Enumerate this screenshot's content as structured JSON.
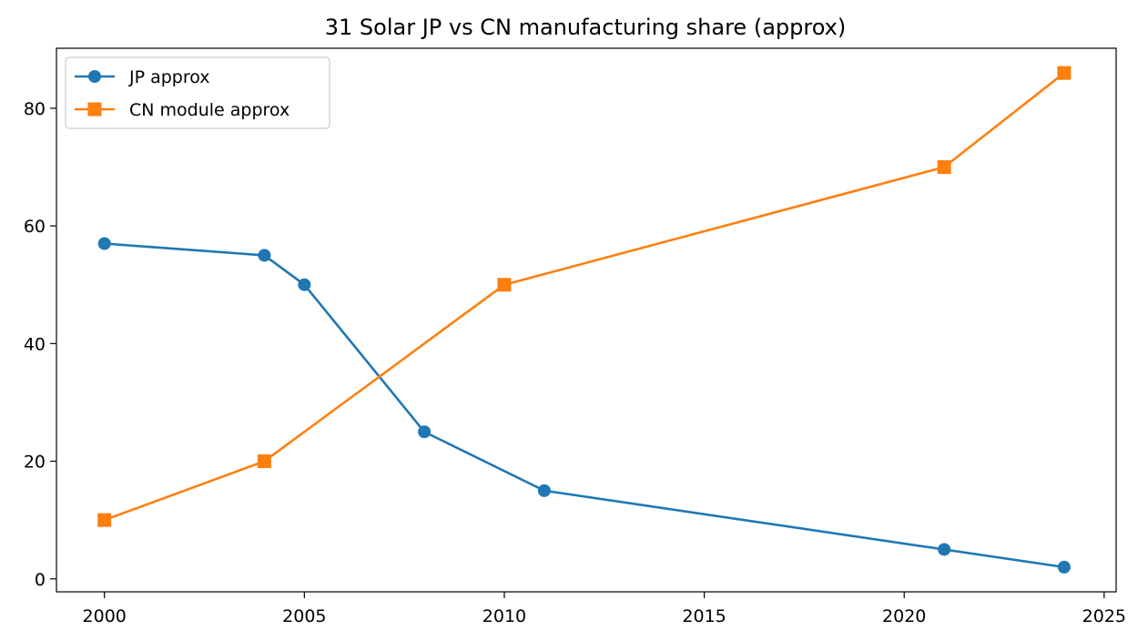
{
  "chart_data": {
    "type": "line",
    "title": "31 Solar JP vs CN manufacturing share (approx)",
    "xlabel": "",
    "ylabel": "",
    "xlim": [
      1998.8,
      2025.3
    ],
    "ylim": [
      -2.2,
      90.2
    ],
    "xticks": [
      2000,
      2005,
      2010,
      2015,
      2020,
      2025
    ],
    "yticks": [
      0,
      20,
      40,
      60,
      80
    ],
    "grid": false,
    "legend_position": "top-left",
    "series": [
      {
        "name": "JP approx",
        "marker": "circle",
        "color": "#1f77b4",
        "x": [
          2000,
          2004,
          2005,
          2008,
          2011,
          2021,
          2024
        ],
        "y": [
          57,
          55,
          50,
          25,
          15,
          5,
          2
        ]
      },
      {
        "name": "CN module approx",
        "marker": "square",
        "color": "#ff7f0e",
        "x": [
          2000,
          2004,
          2010,
          2021,
          2024
        ],
        "y": [
          10,
          20,
          50,
          70,
          86
        ]
      }
    ]
  }
}
